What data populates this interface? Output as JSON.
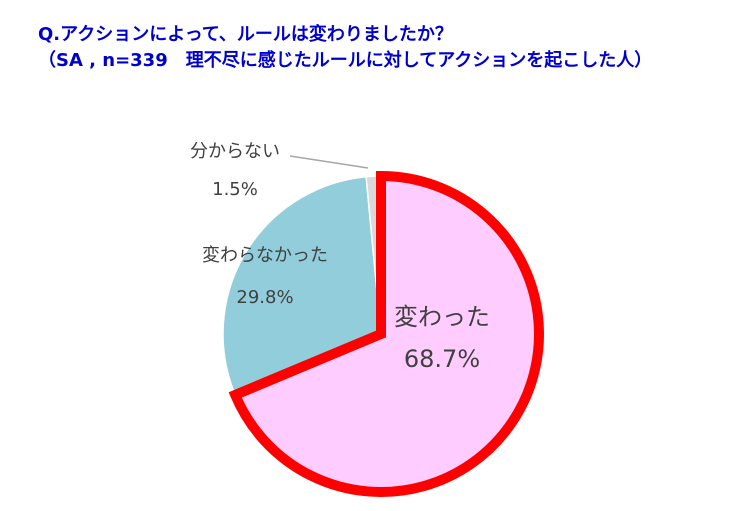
{
  "chart_data": {
    "type": "pie",
    "title": "Q.アクションによって、ルールは変わりましたか？",
    "subtitle": "（SA , n=339　理不尽に感じたルールに対してアクションを起こした人）",
    "categories": [
      "変わった",
      "変わらなかった",
      "分からない"
    ],
    "values": [
      68.7,
      29.8,
      1.5
    ],
    "value_labels": [
      "68.7%",
      "29.8%",
      "1.5%"
    ],
    "colors": [
      "#ffccff",
      "#92cddc",
      "#d9d9d9"
    ],
    "highlight": 0,
    "highlight_color": "#ff0000"
  }
}
